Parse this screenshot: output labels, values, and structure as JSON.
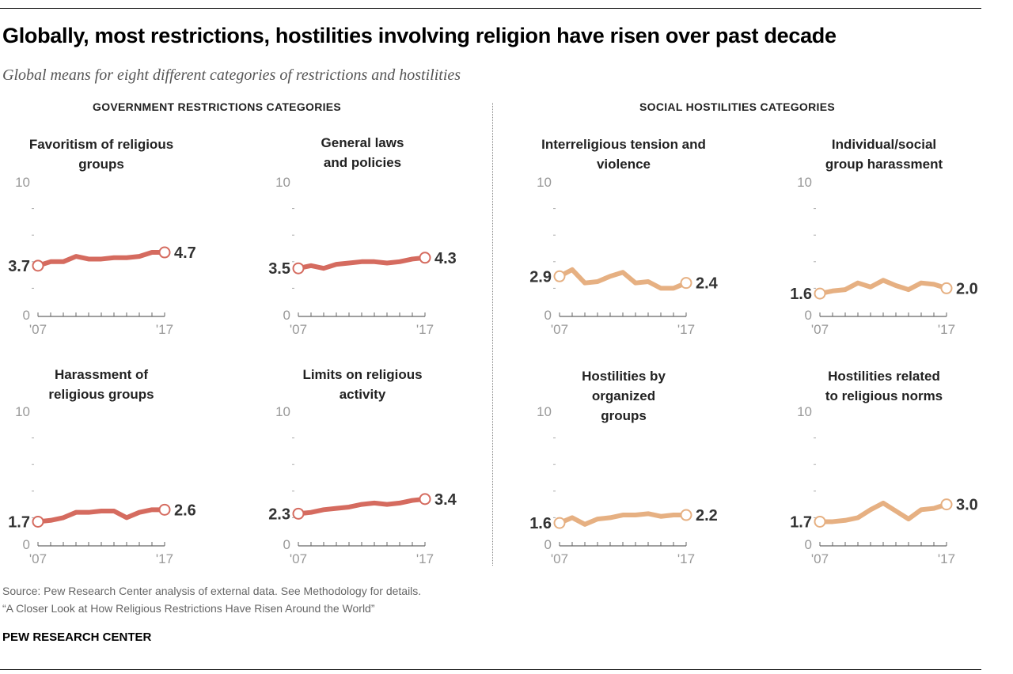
{
  "title": "Globally, most restrictions, hostilities involving religion have risen over past decade",
  "subtitle": "Global means for eight different categories of restrictions and hostilities",
  "sections": [
    "GOVERNMENT RESTRICTIONS CATEGORIES",
    "SOCIAL HOSTILITIES CATEGORIES"
  ],
  "source": "Source: Pew Research Center analysis of external data. See Methodology for details.",
  "report": "“A Closer Look at How Religious Restrictions Have Risen Around the World”",
  "brand": "PEW RESEARCH CENTER",
  "colors": {
    "government": "#d56b5f",
    "social": "#e6b082"
  },
  "chart_data": [
    {
      "type": "line",
      "title": "Favoritism of religious groups",
      "group": "government",
      "x": [
        2007,
        2008,
        2009,
        2010,
        2011,
        2012,
        2013,
        2014,
        2015,
        2016,
        2017
      ],
      "values": [
        3.7,
        4.0,
        4.0,
        4.4,
        4.2,
        4.2,
        4.3,
        4.3,
        4.4,
        4.7,
        4.7
      ],
      "start_label": "3.7",
      "end_label": "4.7",
      "ylim": [
        0,
        10
      ],
      "yticks": [
        "0",
        "10"
      ],
      "xticks": [
        "'07",
        "'17"
      ]
    },
    {
      "type": "line",
      "title": "General laws and policies",
      "group": "government",
      "x": [
        2007,
        2008,
        2009,
        2010,
        2011,
        2012,
        2013,
        2014,
        2015,
        2016,
        2017
      ],
      "values": [
        3.5,
        3.7,
        3.5,
        3.8,
        3.9,
        4.0,
        4.0,
        3.9,
        4.0,
        4.2,
        4.3
      ],
      "start_label": "3.5",
      "end_label": "4.3",
      "ylim": [
        0,
        10
      ],
      "yticks": [
        "0",
        "10"
      ],
      "xticks": [
        "'07",
        "'17"
      ]
    },
    {
      "type": "line",
      "title": "Interreligious tension and violence",
      "group": "social",
      "x": [
        2007,
        2008,
        2009,
        2010,
        2011,
        2012,
        2013,
        2014,
        2015,
        2016,
        2017
      ],
      "values": [
        2.9,
        3.4,
        2.4,
        2.5,
        2.9,
        3.2,
        2.4,
        2.5,
        2.0,
        2.0,
        2.4
      ],
      "start_label": "2.9",
      "end_label": "2.4",
      "ylim": [
        0,
        10
      ],
      "yticks": [
        "0",
        "10"
      ],
      "xticks": [
        "'07",
        "'17"
      ]
    },
    {
      "type": "line",
      "title": "Individual/social group harassment",
      "group": "social",
      "x": [
        2007,
        2008,
        2009,
        2010,
        2011,
        2012,
        2013,
        2014,
        2015,
        2016,
        2017
      ],
      "values": [
        1.6,
        1.8,
        1.9,
        2.4,
        2.1,
        2.6,
        2.2,
        1.9,
        2.4,
        2.3,
        2.0
      ],
      "start_label": "1.6",
      "end_label": "2.0",
      "ylim": [
        0,
        10
      ],
      "yticks": [
        "0",
        "10"
      ],
      "xticks": [
        "'07",
        "'17"
      ]
    },
    {
      "type": "line",
      "title": "Harassment of religious groups",
      "group": "government",
      "x": [
        2007,
        2008,
        2009,
        2010,
        2011,
        2012,
        2013,
        2014,
        2015,
        2016,
        2017
      ],
      "values": [
        1.7,
        1.8,
        2.0,
        2.4,
        2.4,
        2.5,
        2.5,
        2.0,
        2.4,
        2.6,
        2.6
      ],
      "start_label": "1.7",
      "end_label": "2.6",
      "ylim": [
        0,
        10
      ],
      "yticks": [
        "0",
        "10"
      ],
      "xticks": [
        "'07",
        "'17"
      ]
    },
    {
      "type": "line",
      "title": "Limits on religious activity",
      "group": "government",
      "x": [
        2007,
        2008,
        2009,
        2010,
        2011,
        2012,
        2013,
        2014,
        2015,
        2016,
        2017
      ],
      "values": [
        2.3,
        2.4,
        2.6,
        2.7,
        2.8,
        3.0,
        3.1,
        3.0,
        3.1,
        3.3,
        3.4
      ],
      "start_label": "2.3",
      "end_label": "3.4",
      "ylim": [
        0,
        10
      ],
      "yticks": [
        "0",
        "10"
      ],
      "xticks": [
        "'07",
        "'17"
      ]
    },
    {
      "type": "line",
      "title": "Hostilities by organized groups",
      "group": "social",
      "x": [
        2007,
        2008,
        2009,
        2010,
        2011,
        2012,
        2013,
        2014,
        2015,
        2016,
        2017
      ],
      "values": [
        1.6,
        2.0,
        1.5,
        1.9,
        2.0,
        2.2,
        2.2,
        2.3,
        2.1,
        2.2,
        2.2
      ],
      "start_label": "1.6",
      "end_label": "2.2",
      "ylim": [
        0,
        10
      ],
      "yticks": [
        "0",
        "10"
      ],
      "xticks": [
        "'07",
        "'17"
      ]
    },
    {
      "type": "line",
      "title": "Hostilities related to religious norms",
      "group": "social",
      "x": [
        2007,
        2008,
        2009,
        2010,
        2011,
        2012,
        2013,
        2014,
        2015,
        2016,
        2017
      ],
      "values": [
        1.7,
        1.7,
        1.8,
        2.0,
        2.6,
        3.1,
        2.5,
        1.9,
        2.6,
        2.7,
        3.0
      ],
      "start_label": "1.7",
      "end_label": "3.0",
      "ylim": [
        0,
        10
      ],
      "yticks": [
        "0",
        "10"
      ],
      "xticks": [
        "'07",
        "'17"
      ]
    }
  ]
}
